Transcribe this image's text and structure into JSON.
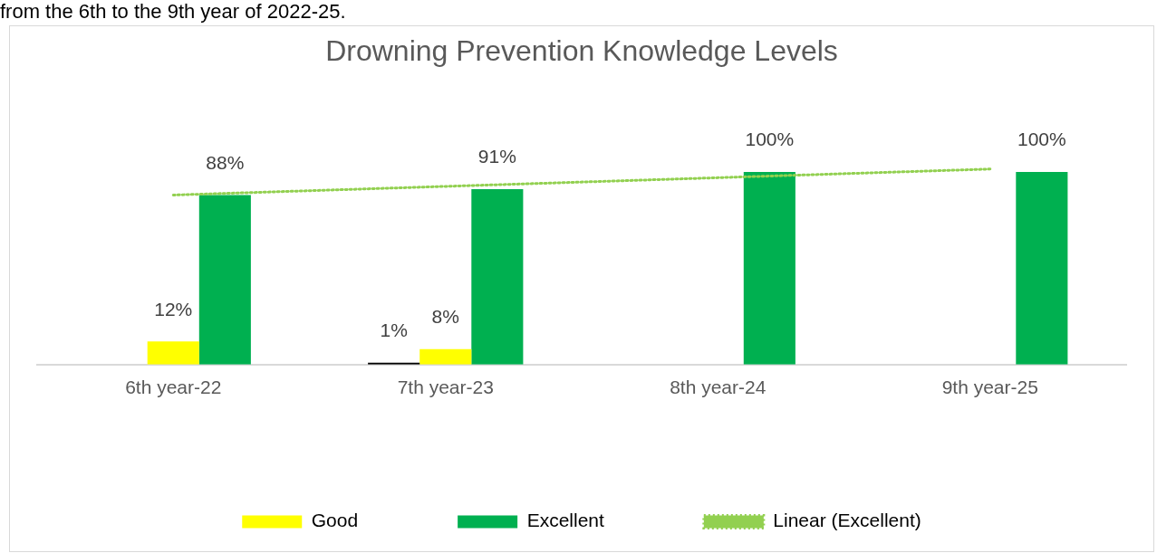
{
  "chart_data": {
    "type": "bar",
    "title": "Drowning Prevention Knowledge Levels",
    "annotations": [
      "from the 6th to the 9th year of 2022-25."
    ],
    "categories": [
      "6th year-22",
      "7th year-23",
      "8th year-24",
      "9th year-25"
    ],
    "series": [
      {
        "color": "#000000",
        "values": [
          null,
          1,
          null,
          null
        ],
        "value_labels": [
          null,
          "1%",
          null,
          null
        ]
      },
      {
        "name": "Good",
        "color": "#ffff00",
        "values": [
          12,
          8,
          null,
          null
        ],
        "value_labels": [
          "12%",
          "8%",
          null,
          null
        ]
      },
      {
        "name": "Excellent",
        "color": "#00b050",
        "values": [
          88,
          91,
          100,
          100
        ],
        "value_labels": [
          "88%",
          "91%",
          "100%",
          "100%"
        ]
      },
      {
        "name": "Linear (Excellent)",
        "type": "line",
        "color": "#92d050",
        "line_style": "dotted",
        "marker": "none",
        "values": [
          88,
          92.5,
          97,
          101.5
        ]
      }
    ],
    "grid": false,
    "legend": "bottom"
  }
}
